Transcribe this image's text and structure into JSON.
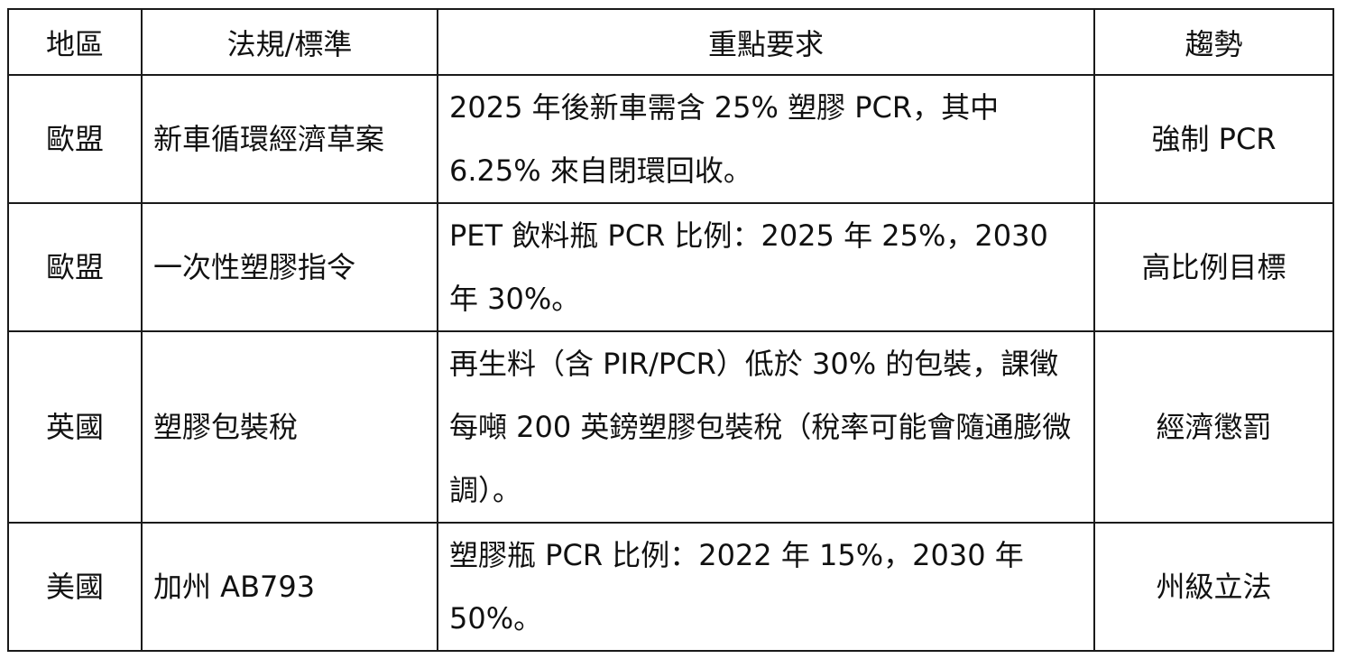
{
  "table": {
    "headers": [
      "地區",
      "法規/標準",
      "重點要求",
      "趨勢"
    ],
    "rows": [
      {
        "region": "歐盟",
        "law": "新車循環經濟草案",
        "requirement": "2025 年後新車需含 25% 塑膠 PCR，其中 6.25% 來自閉環回收。",
        "trend": "強制 PCR"
      },
      {
        "region": "歐盟",
        "law": "一次性塑膠指令",
        "requirement": "PET 飲料瓶 PCR 比例：2025 年 25%，2030 年 30%。",
        "trend": "高比例目標"
      },
      {
        "region": "英國",
        "law": "塑膠包裝稅",
        "requirement": "再生料（含 PIR/PCR）低於 30% 的包裝，課徵每噸 200 英鎊塑膠包裝稅（稅率可能會隨通膨微調）。",
        "trend": "經濟懲罰"
      },
      {
        "region": "美國",
        "law": "加州 AB793",
        "requirement": "塑膠瓶 PCR 比例：2022 年 15%，2030 年 50%。",
        "trend": "州級立法"
      }
    ]
  }
}
